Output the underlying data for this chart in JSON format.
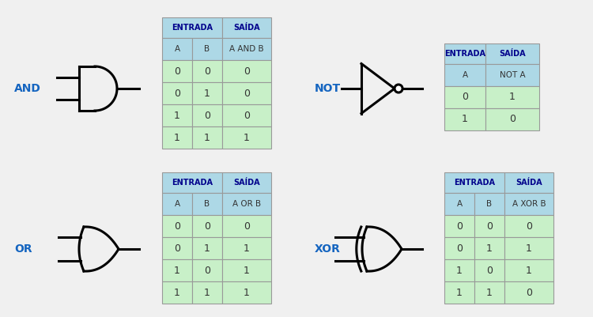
{
  "bg_color": "#f0f0f0",
  "header_bg": "#add8e6",
  "row_bg": "#c8f0c8",
  "header_text_color": "#00008B",
  "data_text_color": "#333333",
  "label_color": "#1565C0",
  "gate_color": "#000000",
  "table_border_color": "#aaaaaa",
  "and_table": {
    "col_headers": [
      "A",
      "B",
      "A AND B"
    ],
    "data": [
      [
        0,
        0,
        0
      ],
      [
        0,
        1,
        0
      ],
      [
        1,
        0,
        0
      ],
      [
        1,
        1,
        1
      ]
    ]
  },
  "not_table": {
    "col_headers": [
      "A",
      "NOT A"
    ],
    "data": [
      [
        0,
        1
      ],
      [
        1,
        0
      ]
    ]
  },
  "or_table": {
    "col_headers": [
      "A",
      "B",
      "A OR B"
    ],
    "data": [
      [
        0,
        0,
        0
      ],
      [
        0,
        1,
        1
      ],
      [
        1,
        0,
        1
      ],
      [
        1,
        1,
        1
      ]
    ]
  },
  "xor_table": {
    "col_headers": [
      "A",
      "B",
      "A XOR B"
    ],
    "data": [
      [
        0,
        0,
        0
      ],
      [
        0,
        1,
        1
      ],
      [
        1,
        0,
        1
      ],
      [
        1,
        1,
        0
      ]
    ]
  },
  "and_label": "AND",
  "not_label": "NOT",
  "or_label": "OR",
  "xor_label": "XOR"
}
